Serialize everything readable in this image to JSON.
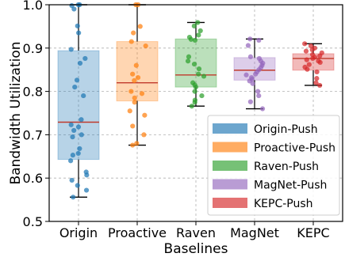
{
  "chart_data": {
    "type": "box",
    "xlabel": "Baselines",
    "ylabel": "Bandwidth Utilization",
    "ylim": [
      0.5,
      1.0
    ],
    "yticks": [
      "0.5",
      "0.6",
      "0.7",
      "0.8",
      "0.9",
      "1.0"
    ],
    "grid": true,
    "legend_position": "lower-right",
    "categories": [
      "Origin",
      "Proactive",
      "Raven",
      "MagNet",
      "KEPC"
    ],
    "series": [
      {
        "name": "Origin-Push",
        "category": "Origin",
        "color": "#1f77b4",
        "whisker_low": 0.556,
        "q1": 0.643,
        "median": 0.729,
        "q3": 0.894,
        "whisker_high": 1.0,
        "points": [
          1.0,
          1.0,
          0.998,
          0.99,
          0.951,
          0.935,
          0.897,
          0.876,
          0.865,
          0.826,
          0.81,
          0.79,
          0.735,
          0.723,
          0.718,
          0.71,
          0.7,
          0.695,
          0.668,
          0.657,
          0.653,
          0.64,
          0.614,
          0.607,
          0.595,
          0.583,
          0.572,
          0.556
        ]
      },
      {
        "name": "Proactive-Push",
        "category": "Proactive",
        "color": "#ff7f0e",
        "whisker_low": 0.676,
        "q1": 0.778,
        "median": 0.82,
        "q3": 0.915,
        "whisker_high": 1.0,
        "points": [
          1.0,
          1.0,
          0.95,
          0.935,
          0.915,
          0.905,
          0.86,
          0.84,
          0.832,
          0.825,
          0.8,
          0.795,
          0.785,
          0.775,
          0.755,
          0.745,
          0.72,
          0.7,
          0.68,
          0.676
        ]
      },
      {
        "name": "Raven-Push",
        "category": "Raven",
        "color": "#2ca02c",
        "whisker_low": 0.766,
        "q1": 0.81,
        "median": 0.838,
        "q3": 0.921,
        "whisker_high": 0.959,
        "points": [
          0.959,
          0.951,
          0.94,
          0.93,
          0.925,
          0.92,
          0.918,
          0.88,
          0.87,
          0.863,
          0.852,
          0.84,
          0.835,
          0.82,
          0.815,
          0.81,
          0.8,
          0.79,
          0.78,
          0.775,
          0.766
        ]
      },
      {
        "name": "MagNet-Push",
        "category": "MagNet",
        "color": "#9467bd",
        "whisker_low": 0.76,
        "q1": 0.826,
        "median": 0.849,
        "q3": 0.878,
        "whisker_high": 0.921,
        "points": [
          0.921,
          0.918,
          0.906,
          0.88,
          0.876,
          0.87,
          0.865,
          0.86,
          0.855,
          0.85,
          0.845,
          0.84,
          0.838,
          0.832,
          0.828,
          0.824,
          0.818,
          0.8,
          0.79,
          0.776,
          0.76
        ]
      },
      {
        "name": "KEPC-Push",
        "category": "KEPC",
        "color": "#d62728",
        "whisker_low": 0.814,
        "q1": 0.849,
        "median": 0.876,
        "q3": 0.887,
        "whisker_high": 0.91,
        "points": [
          0.91,
          0.905,
          0.9,
          0.896,
          0.893,
          0.889,
          0.885,
          0.882,
          0.879,
          0.876,
          0.873,
          0.87,
          0.867,
          0.862,
          0.856,
          0.851,
          0.845,
          0.83,
          0.82,
          0.814
        ]
      }
    ]
  }
}
